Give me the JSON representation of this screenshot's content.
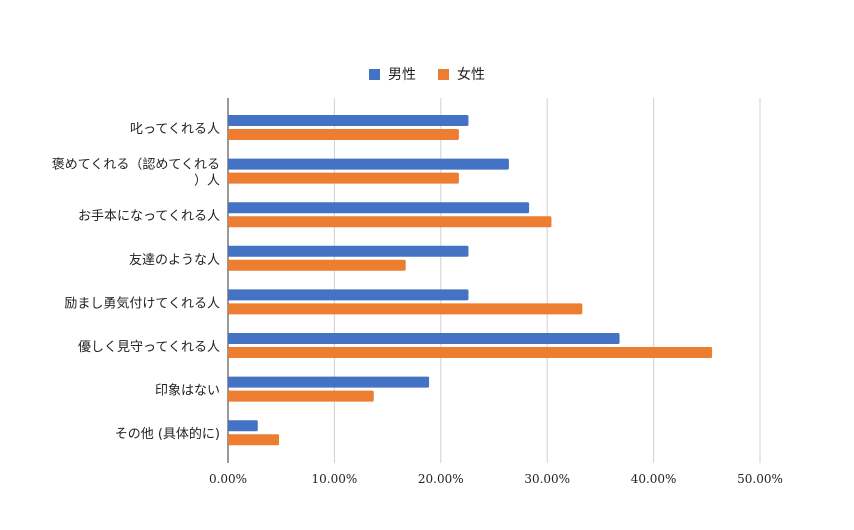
{
  "chart_data": {
    "type": "bar",
    "orientation": "horizontal",
    "title": "",
    "xlabel": "",
    "ylabel": "",
    "categories": [
      [
        "叱ってくれる人"
      ],
      [
        "褒めてくれる（認めてくれる",
        "）人"
      ],
      [
        "お手本になってくれる人"
      ],
      [
        "友達のような人"
      ],
      [
        "励まし勇気付けてくれる人"
      ],
      [
        "優しく見守ってくれる人"
      ],
      [
        "印象はない"
      ],
      [
        "その他 (具体的に)"
      ]
    ],
    "series": [
      {
        "name": "男性",
        "color": "#4472C4",
        "values": [
          0.226,
          0.264,
          0.283,
          0.226,
          0.226,
          0.368,
          0.189,
          0.028
        ]
      },
      {
        "name": "女性",
        "color": "#ED7D31",
        "values": [
          0.217,
          0.217,
          0.304,
          0.167,
          0.333,
          0.455,
          0.137,
          0.048
        ]
      }
    ],
    "xlim": [
      0,
      0.5
    ],
    "xticks": [
      0,
      0.1,
      0.2,
      0.3,
      0.4,
      0.5
    ],
    "xtick_labels": [
      "0.00%",
      "10.00%",
      "20.00%",
      "30.00%",
      "40.00%",
      "50.00%"
    ],
    "grid": "vertical",
    "legend_position": "top-center"
  }
}
